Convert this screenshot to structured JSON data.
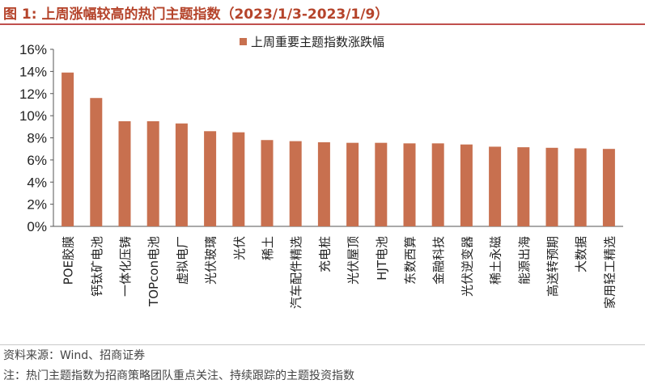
{
  "title": "图 1:  上周涨幅较高的热门主题指数（2023/1/3-2023/1/9）",
  "chart_data": {
    "type": "bar",
    "title": "",
    "xlabel": "",
    "ylabel": "",
    "ylim": [
      0,
      16
    ],
    "yticks": [
      "0%",
      "2%",
      "4%",
      "6%",
      "8%",
      "10%",
      "12%",
      "14%",
      "16%"
    ],
    "ytick_values": [
      0,
      2,
      4,
      6,
      8,
      10,
      12,
      14,
      16
    ],
    "grid": false,
    "legend_position": "top",
    "color": "#c8704f",
    "categories": [
      "POE胶膜",
      "钙钛矿电池",
      "一体化压铸",
      "TOPcon电池",
      "虚拟电厂",
      "光伏玻璃",
      "光伏",
      "稀土",
      "汽车配件精选",
      "充电桩",
      "光伏屋顶",
      "HJT电池",
      "东数西算",
      "金融科技",
      "光伏逆变器",
      "稀土永磁",
      "能源出海",
      "高送转预期",
      "大数据",
      "家用轻工精选"
    ],
    "series": [
      {
        "name": "上周重要主题指数涨跌幅",
        "values": [
          13.9,
          11.6,
          9.5,
          9.5,
          9.3,
          8.6,
          8.5,
          7.8,
          7.7,
          7.6,
          7.55,
          7.55,
          7.5,
          7.5,
          7.4,
          7.2,
          7.15,
          7.1,
          7.05,
          7.0
        ]
      }
    ]
  },
  "footer": {
    "source": "资料来源：Wind、招商证券",
    "note": "注：热门主题指数为招商策略团队重点关注、持续跟踪的主题投资指数"
  }
}
